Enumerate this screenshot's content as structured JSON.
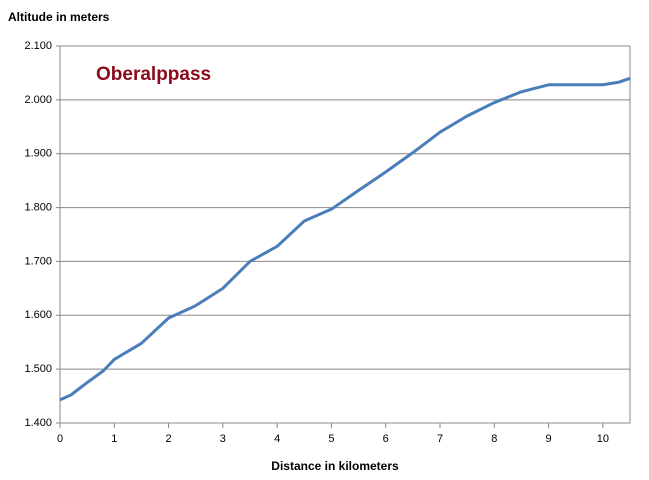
{
  "chart_data": {
    "type": "line",
    "title": "Altitude in meters",
    "x_label": "Distance in kilometers",
    "annotation": "Oberalppass",
    "x": [
      0,
      0.2,
      0.5,
      0.8,
      1,
      1.5,
      2,
      2.4,
      2.5,
      3,
      3.5,
      4,
      4.5,
      5,
      5.5,
      6,
      6.5,
      7,
      7.5,
      8,
      8.5,
      9,
      9.5,
      10,
      10.3,
      10.5
    ],
    "series": [
      {
        "name": "Altitude",
        "color": "#4a7ebb",
        "values": [
          1443,
          1452,
          1475,
          1497,
          1518,
          1548,
          1595,
          1613,
          1618,
          1650,
          1700,
          1728,
          1775,
          1797,
          1832,
          1866,
          1902,
          1940,
          1970,
          1995,
          2015,
          2028,
          2028,
          2028,
          2033,
          2040
        ]
      }
    ],
    "xlim": [
      0,
      10.5
    ],
    "xticks": [
      0,
      1,
      2,
      3,
      4,
      5,
      6,
      7,
      8,
      9,
      10
    ],
    "ylim": [
      1400,
      2100
    ],
    "yticks": [
      {
        "value": 1400,
        "label": "1.400"
      },
      {
        "value": 1500,
        "label": "1.500"
      },
      {
        "value": 1600,
        "label": "1.600"
      },
      {
        "value": 1700,
        "label": "1.700"
      },
      {
        "value": 1800,
        "label": "1.800"
      },
      {
        "value": 1900,
        "label": "1.900"
      },
      {
        "value": 2000,
        "label": "2.000"
      },
      {
        "value": 2100,
        "label": "2.100"
      }
    ],
    "grid": true
  }
}
